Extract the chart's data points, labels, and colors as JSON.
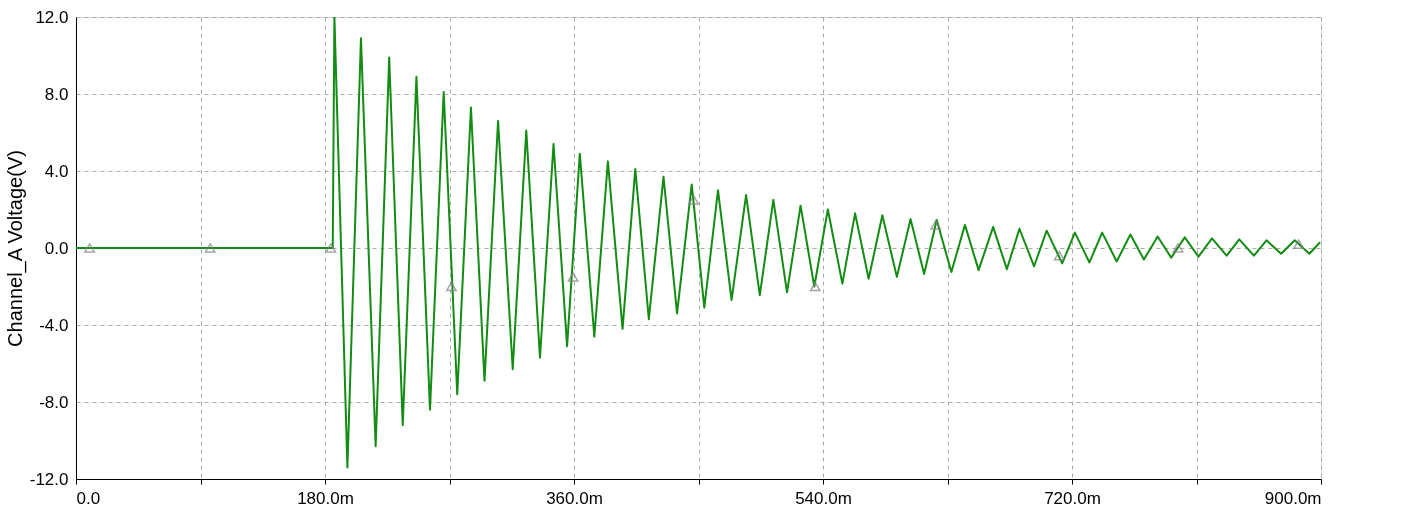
{
  "chart_data": {
    "type": "line",
    "ylabel": "Channel_A Voltage(V)",
    "xlim": [
      0,
      900
    ],
    "ylim": [
      -12,
      12
    ],
    "xticks": [
      {
        "value": 0,
        "label": "0.0"
      },
      {
        "value": 90,
        "label": null
      },
      {
        "value": 180,
        "label": "180.0m"
      },
      {
        "value": 270,
        "label": null
      },
      {
        "value": 360,
        "label": "360.0m"
      },
      {
        "value": 450,
        "label": null
      },
      {
        "value": 540,
        "label": "540.0m"
      },
      {
        "value": 630,
        "label": null
      },
      {
        "value": 720,
        "label": "720.0m"
      },
      {
        "value": 810,
        "label": null
      },
      {
        "value": 900,
        "label": "900.0m"
      }
    ],
    "yticks": [
      {
        "value": -12,
        "label": "-12.0"
      },
      {
        "value": -8,
        "label": "-8.0"
      },
      {
        "value": -4,
        "label": "-4.0"
      },
      {
        "value": 0,
        "label": "0.0"
      },
      {
        "value": 4,
        "label": "4.0"
      },
      {
        "value": 8,
        "label": "8.0"
      },
      {
        "value": 12,
        "label": "12.0"
      }
    ],
    "grid": true,
    "line_style": "solid",
    "series": [
      {
        "color": "#138c13",
        "marker": "none",
        "x": [
          0,
          185.6,
          186.8,
          196.2,
          206.0,
          216.6,
          226.4,
          236.2,
          246.1,
          255.9,
          265.8,
          275.6,
          285.5,
          295.3,
          305.1,
          315.7,
          325.5,
          335.4,
          345.2,
          355.0,
          364.2,
          374.7,
          384.5,
          395.1,
          404.3,
          414.1,
          424.7,
          434.5,
          445.1,
          454.2,
          464.1,
          473.9,
          484.4,
          494.3,
          504.1,
          514.0,
          523.8,
          533.7,
          543.5,
          554.0,
          563.2,
          573.0,
          582.9,
          593.4,
          603.3,
          613.1,
          622.2,
          632.8,
          642.6,
          652.5,
          663.0,
          672.9,
          682.0,
          692.6,
          701.7,
          712.9,
          722.1,
          732.6,
          741.8,
          752.3,
          762.2,
          772.0,
          781.9,
          791.7,
          801.5,
          811.4,
          821.2,
          831.8,
          840.9,
          851.5,
          860.6,
          871.2,
          881.0,
          891.6,
          899.3
        ],
        "values": [
          0,
          0,
          12,
          -11.4,
          10.9,
          -10.3,
          9.9,
          -9.2,
          8.9,
          -8.4,
          8.1,
          -7.6,
          7.3,
          -6.9,
          6.6,
          -6.3,
          6.1,
          -5.7,
          5.4,
          -5.1,
          4.9,
          -4.6,
          4.5,
          -4.2,
          4.1,
          -3.7,
          3.7,
          -3.4,
          3.3,
          -3.1,
          3.0,
          -2.7,
          2.75,
          -2.45,
          2.5,
          -2.3,
          2.2,
          -2.0,
          2.0,
          -1.85,
          1.8,
          -1.6,
          1.7,
          -1.5,
          1.5,
          -1.35,
          1.45,
          -1.25,
          1.2,
          -1.15,
          1.1,
          -1.1,
          1.0,
          -0.95,
          0.9,
          -0.8,
          0.8,
          -0.75,
          0.8,
          -0.7,
          0.7,
          -0.6,
          0.6,
          -0.5,
          0.55,
          -0.45,
          0.5,
          -0.4,
          0.45,
          -0.4,
          0.4,
          -0.3,
          0.4,
          -0.3,
          0.3
        ]
      },
      {
        "type": "scatter",
        "color": "#808080",
        "marker": "triangle",
        "x": [
          9.8,
          97.0,
          184.2,
          271.4,
          359.3,
          446.5,
          534.4,
          621.5,
          710.8,
          796.6,
          883.8
        ],
        "values": [
          0,
          0,
          0,
          -2.0,
          -1.5,
          2.5,
          -2.0,
          1.2,
          -0.4,
          0.0,
          0.2
        ]
      }
    ]
  }
}
